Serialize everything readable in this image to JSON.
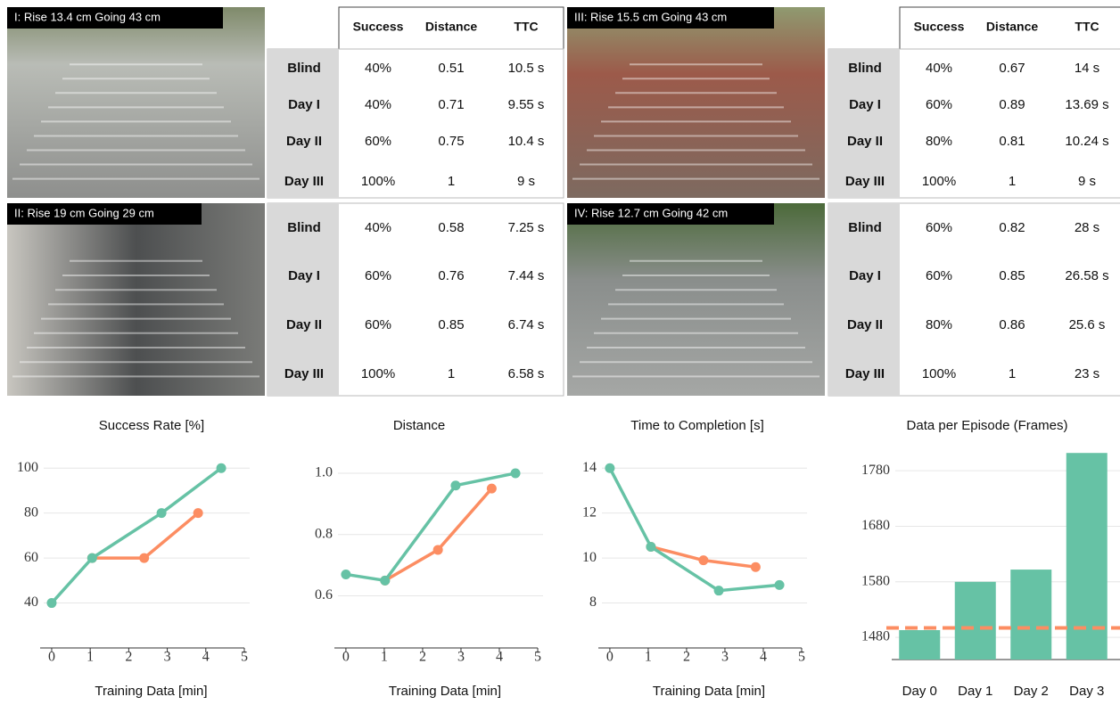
{
  "header": [
    "Success",
    "Distance",
    "TTC"
  ],
  "panels": [
    {
      "label": "I: Rise 13.4 cm Going 43 cm",
      "rows": [
        [
          "Blind",
          "40%",
          "0.51",
          "10.5 s"
        ],
        [
          "Day I",
          "40%",
          "0.71",
          "9.55 s"
        ],
        [
          "Day II",
          "60%",
          "0.75",
          "10.4 s"
        ],
        [
          "Day III",
          "100%",
          "1",
          "9 s"
        ]
      ]
    },
    {
      "label": "III:  Rise 15.5 cm Going 43 cm",
      "rows": [
        [
          "Blind",
          "40%",
          "0.67",
          "14 s"
        ],
        [
          "Day I",
          "60%",
          "0.89",
          "13.69 s"
        ],
        [
          "Day II",
          "80%",
          "0.81",
          "10.24 s"
        ],
        [
          "Day III",
          "100%",
          "1",
          "9 s"
        ]
      ]
    },
    {
      "label": "II: Rise 19 cm Going 29 cm",
      "rows": [
        [
          "Blind",
          "40%",
          "0.58",
          "7.25 s"
        ],
        [
          "Day I",
          "60%",
          "0.76",
          "7.44 s"
        ],
        [
          "Day II",
          "60%",
          "0.85",
          "6.74 s"
        ],
        [
          "Day III",
          "100%",
          "1",
          "6.58 s"
        ]
      ]
    },
    {
      "label": "IV: Rise 12.7 cm Going 42 cm",
      "rows": [
        [
          "Blind",
          "60%",
          "0.82",
          "28 s"
        ],
        [
          "Day I",
          "60%",
          "0.85",
          "26.58 s"
        ],
        [
          "Day II",
          "80%",
          "0.86",
          "25.6 s"
        ],
        [
          "Day III",
          "100%",
          "1",
          "23 s"
        ]
      ]
    }
  ],
  "chart_data": [
    {
      "type": "line",
      "title": "Success Rate [%]",
      "xlabel": "Training Data [min]",
      "xlim": [
        -0.3,
        5
      ],
      "xticks": [
        0,
        1,
        2,
        3,
        4,
        5
      ],
      "ylim": [
        20,
        110
      ],
      "yticks": [
        40,
        60,
        80,
        100
      ],
      "grid": true,
      "series": [
        {
          "color": "#66c2a5",
          "x": [
            0,
            1.05,
            2.85,
            4.4
          ],
          "values": [
            40,
            60,
            80,
            100
          ]
        },
        {
          "color": "#fc8d62",
          "x": [
            1.05,
            2.4,
            3.8
          ],
          "values": [
            60,
            60,
            80
          ]
        }
      ]
    },
    {
      "type": "line",
      "title": "Distance",
      "xlabel": "Training Data [min]",
      "xlim": [
        -0.3,
        5
      ],
      "xticks": [
        0,
        1,
        2,
        3,
        4,
        5
      ],
      "ylim": [
        0.43,
        1.09
      ],
      "yticks": [
        0.6,
        0.8,
        {
          "value": 1,
          "label": "1.0"
        }
      ],
      "grid": true,
      "series": [
        {
          "color": "#66c2a5",
          "x": [
            0,
            1.02,
            2.86,
            4.42
          ],
          "values": [
            0.67,
            0.65,
            0.96,
            1
          ]
        },
        {
          "color": "#fc8d62",
          "x": [
            1.02,
            2.4,
            3.8
          ],
          "values": [
            0.65,
            0.75,
            0.95
          ]
        }
      ]
    },
    {
      "type": "line",
      "title": "Time to Completion [s]",
      "xlabel": "Training Data [min]",
      "xlim": [
        -0.3,
        5
      ],
      "xticks": [
        0,
        1,
        2,
        3,
        4,
        5
      ],
      "ylim": [
        6,
        15
      ],
      "yticks": [
        8,
        10,
        12,
        14
      ],
      "grid": true,
      "series": [
        {
          "color": "#66c2a5",
          "x": [
            0,
            1.07,
            2.84,
            4.42
          ],
          "values": [
            14,
            10.5,
            8.55,
            8.8
          ]
        },
        {
          "color": "#fc8d62",
          "x": [
            1.07,
            2.44,
            3.8
          ],
          "values": [
            10.5,
            9.9,
            9.6
          ]
        }
      ]
    },
    {
      "type": "bar",
      "title": "Data per Episode (Frames)",
      "categories": [
        "Day 0",
        "Day 1",
        "Day 2",
        "Day 3"
      ],
      "values": [
        1493,
        1580,
        1602,
        1812
      ],
      "color": "#66c2a5",
      "ylim": [
        1440,
        1830
      ],
      "yticks": [
        1480,
        1580,
        1680,
        1780
      ],
      "grid": true,
      "reference_line": {
        "value": 1497,
        "color": "#fc8d62"
      }
    }
  ]
}
